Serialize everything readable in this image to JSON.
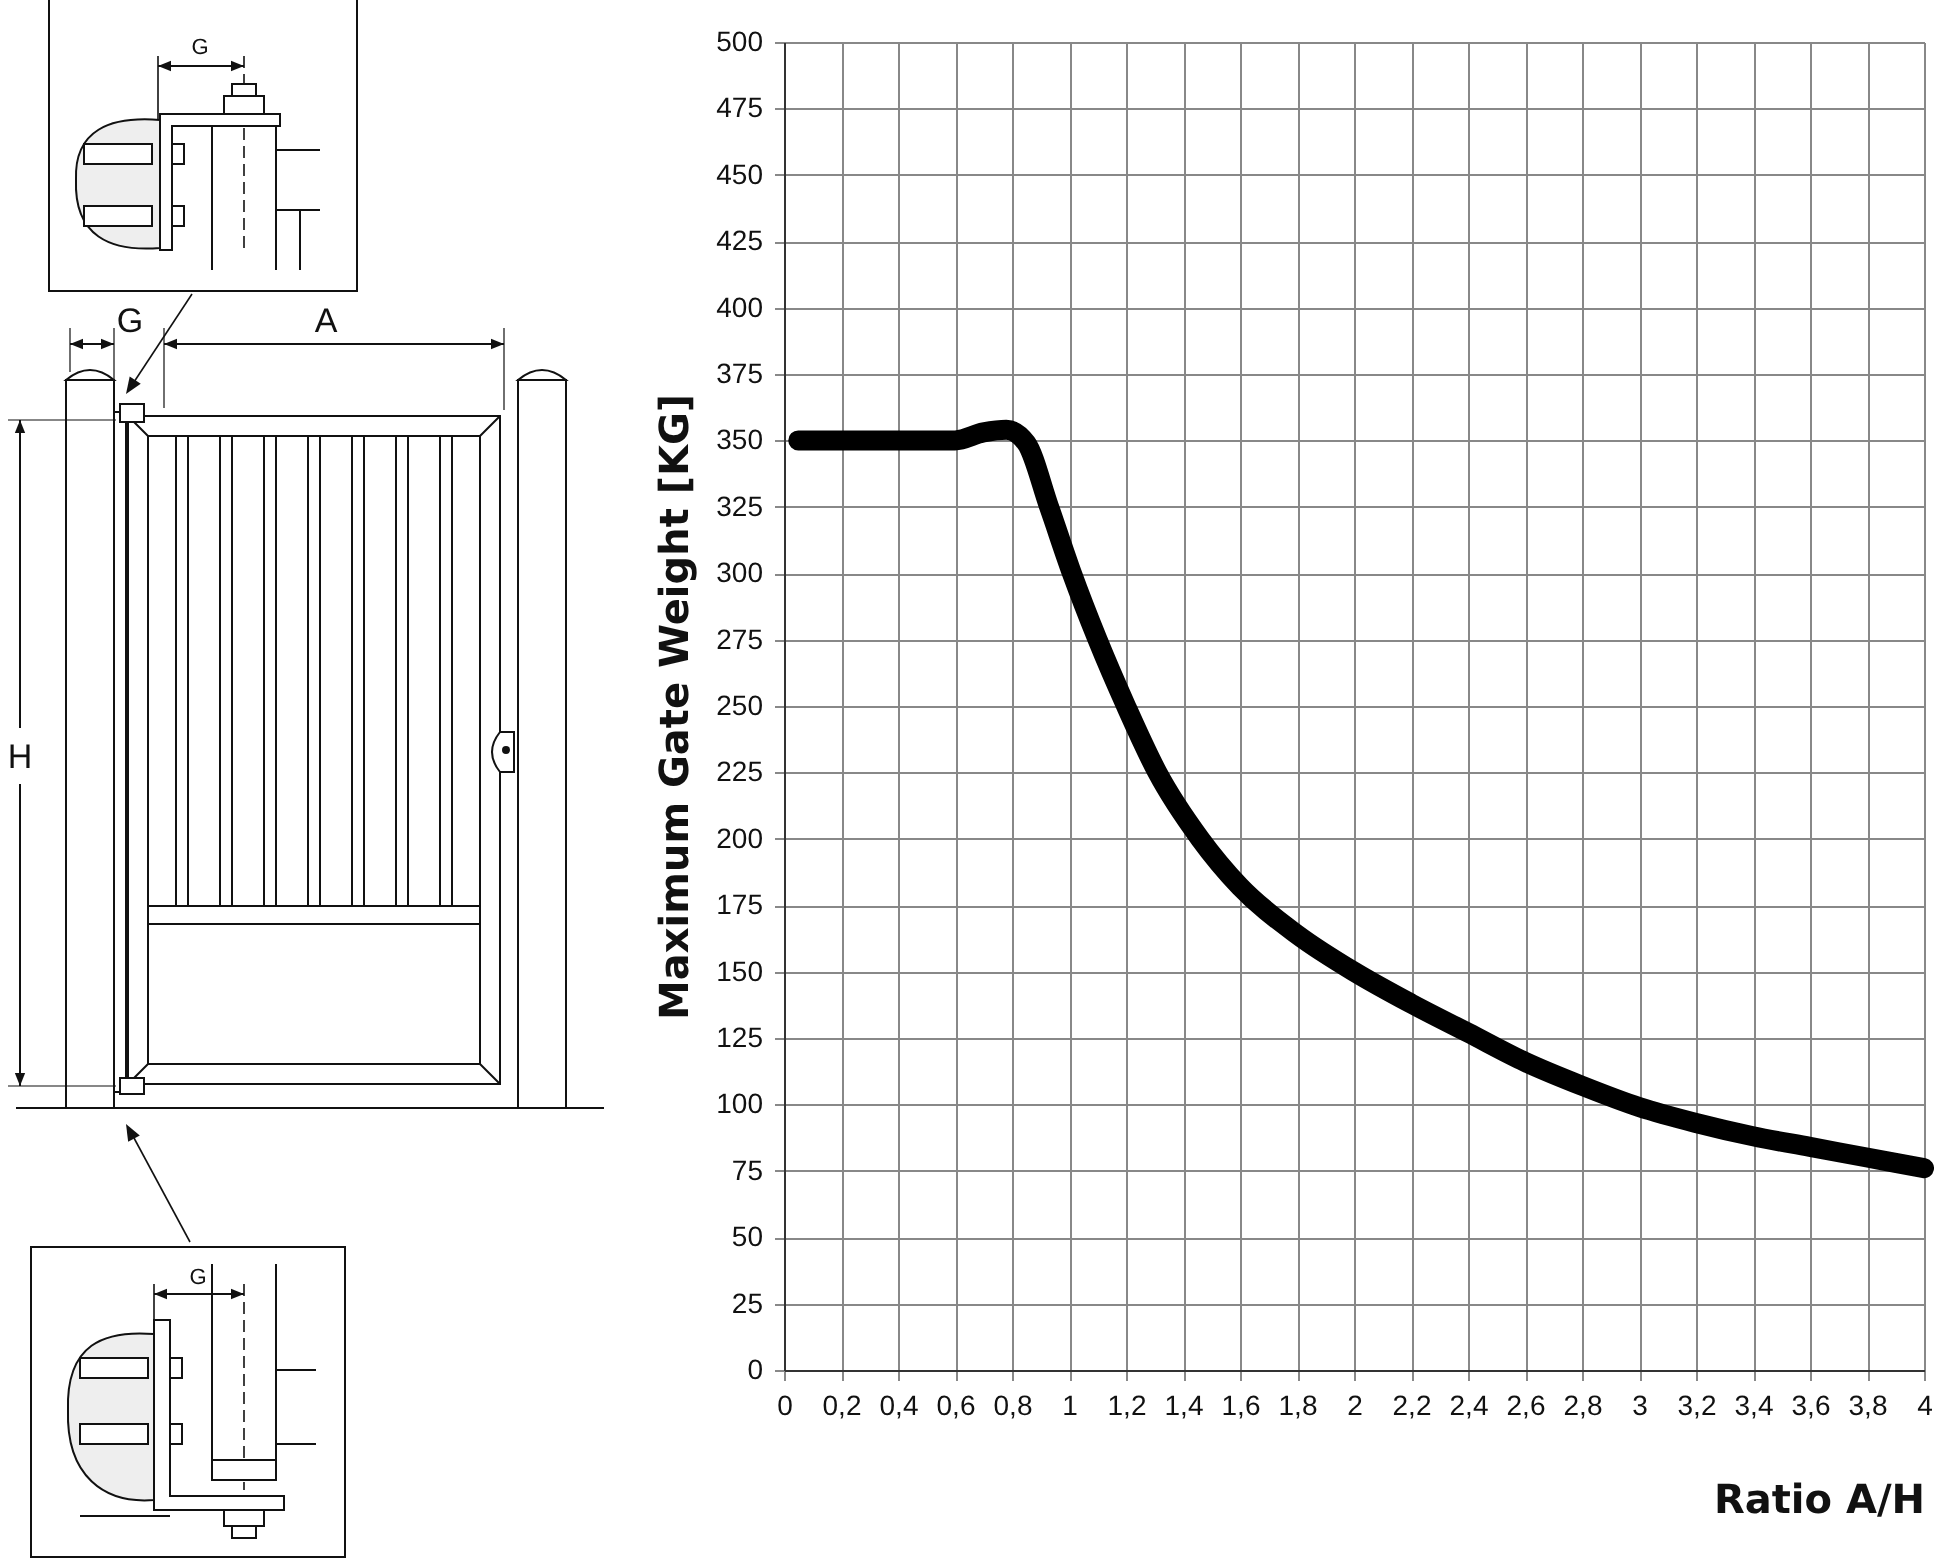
{
  "chart_data": {
    "type": "line",
    "xlabel": "Ratio A/H",
    "ylabel": "Maximum Gate Weight [KG]",
    "x": [
      0.05,
      0.6,
      0.7,
      0.78,
      0.85,
      0.93,
      1.01,
      1.1,
      1.2,
      1.31,
      1.46,
      1.6,
      1.8,
      2.0,
      2.2,
      2.4,
      2.6,
      2.8,
      3.0,
      3.2,
      3.4,
      3.6,
      3.8,
      4.0
    ],
    "series": [
      {
        "color": "#000000",
        "values": [
          350,
          350,
          353,
          354,
          349,
          325,
          300,
          275,
          250,
          225,
          200,
          182,
          164,
          150,
          138,
          127,
          116,
          107,
          99,
          93,
          88,
          84,
          80,
          76
        ]
      }
    ],
    "xlim": [
      0,
      4
    ],
    "ylim": [
      0,
      500
    ],
    "xticks": [
      0,
      {
        "value": 0.2,
        "label": "0,2"
      },
      {
        "value": 0.4,
        "label": "0,4"
      },
      {
        "value": 0.6,
        "label": "0,6"
      },
      {
        "value": 0.8,
        "label": "0,8"
      },
      1,
      {
        "value": 1.2,
        "label": "1,2"
      },
      {
        "value": 1.4,
        "label": "1,4"
      },
      {
        "value": 1.6,
        "label": "1,6"
      },
      {
        "value": 1.8,
        "label": "1,8"
      },
      2,
      {
        "value": 2.2,
        "label": "2,2"
      },
      {
        "value": 2.4,
        "label": "2,4"
      },
      {
        "value": 2.6,
        "label": "2,6"
      },
      {
        "value": 2.8,
        "label": "2,8"
      },
      3,
      {
        "value": 3.2,
        "label": "3,2"
      },
      {
        "value": 3.4,
        "label": "3,4"
      },
      {
        "value": 3.6,
        "label": "3,6"
      },
      {
        "value": 3.8,
        "label": "3,8"
      },
      4
    ],
    "yticks": [
      0,
      25,
      50,
      75,
      100,
      125,
      150,
      175,
      200,
      225,
      250,
      275,
      300,
      325,
      350,
      375,
      400,
      425,
      450,
      475,
      500
    ],
    "grid": true,
    "line_style": "solid",
    "annotations": [
      "G",
      "G",
      "A",
      "H",
      "G"
    ]
  }
}
